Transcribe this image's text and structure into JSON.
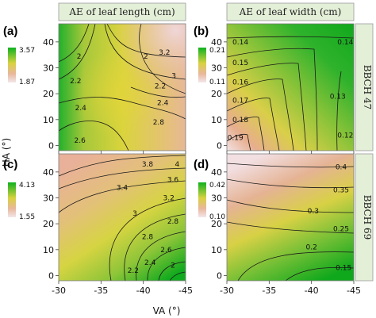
{
  "figure": {
    "column_titles": [
      "AE of leaf length (cm)",
      "AE of leaf width (cm)"
    ],
    "row_titles": [
      "BBCH 47",
      "BBCH 69"
    ],
    "panel_letters": [
      "(a)",
      "(b)",
      "(c)",
      "(d)"
    ],
    "xlabel": "VA (°)",
    "ylabel": "HA (°)"
  },
  "colors": {
    "low": "#f2e6ea",
    "mid_low": "#e9b79c",
    "mid": "#d8d240",
    "high": "#0fb21f",
    "strip": "#e4efd8"
  },
  "chart_data": [
    {
      "type": "heatmap",
      "panel": "(a)",
      "title": "AE of leaf length (cm)",
      "xlabel": "VA (°)",
      "ylabel": "HA (°)",
      "xlim": [
        -30,
        -45
      ],
      "ylim": [
        -2,
        47
      ],
      "x_ticks": [
        "-30",
        "-35",
        "-40",
        "-45"
      ],
      "y_ticks": [
        "0",
        "10",
        "20",
        "30",
        "40"
      ],
      "legend": {
        "max": "3.57",
        "min": "1.87",
        "placement": "left"
      },
      "contours": [
        {
          "label": "3.2",
          "x": -42.5,
          "y": 36
        },
        {
          "label": "3",
          "x": -43.6,
          "y": 27
        },
        {
          "label": "2.8",
          "x": -41.8,
          "y": 9
        },
        {
          "label": "2.6",
          "x": -32.5,
          "y": 2
        },
        {
          "label": "2.4",
          "x": -32.6,
          "y": 14.5
        },
        {
          "label": "2.2",
          "x": -32.0,
          "y": 25
        },
        {
          "label": "2",
          "x": -32.4,
          "y": 34.5
        },
        {
          "label": "2",
          "x": -40.3,
          "y": 34.5
        },
        {
          "label": "2.2",
          "x": -42.0,
          "y": 23
        },
        {
          "label": "2.4",
          "x": -42.3,
          "y": 16.5
        }
      ]
    },
    {
      "type": "heatmap",
      "panel": "(b)",
      "title": "AE of leaf width (cm)",
      "xlabel": "VA (°)",
      "ylabel": "HA (°)",
      "xlim": [
        -30,
        -45
      ],
      "ylim": [
        -2,
        47
      ],
      "x_ticks": [
        "-30",
        "-35",
        "-40",
        "-45"
      ],
      "y_ticks": [
        "0",
        "10",
        "20",
        "30",
        "40"
      ],
      "legend": {
        "max": "0.21",
        "min": "0.11",
        "placement": "left"
      },
      "contours": [
        {
          "label": "0.14",
          "x": -31.6,
          "y": 40
        },
        {
          "label": "0.14",
          "x": -44.0,
          "y": 40
        },
        {
          "label": "0.15",
          "x": -31.6,
          "y": 32
        },
        {
          "label": "0.16",
          "x": -31.6,
          "y": 24.5
        },
        {
          "label": "0.17",
          "x": -31.6,
          "y": 17.5
        },
        {
          "label": "0.18",
          "x": -31.6,
          "y": 10
        },
        {
          "label": "0.19",
          "x": -31.0,
          "y": 3
        },
        {
          "label": "0.13",
          "x": -43.1,
          "y": 19
        },
        {
          "label": "0.12",
          "x": -44.0,
          "y": 4
        }
      ]
    },
    {
      "type": "heatmap",
      "panel": "(c)",
      "title": "",
      "xlabel": "VA (°)",
      "ylabel": "HA (°)",
      "xlim": [
        -30,
        -45
      ],
      "ylim": [
        -2,
        47
      ],
      "x_ticks": [
        "-30",
        "-35",
        "-40",
        "-45"
      ],
      "y_ticks": [
        "0",
        "10",
        "20",
        "30",
        "40"
      ],
      "legend": {
        "max": "4.13",
        "min": "1.55",
        "placement": "left"
      },
      "contours": [
        {
          "label": "3.8",
          "x": -40.5,
          "y": 43
        },
        {
          "label": "4",
          "x": -44.0,
          "y": 43
        },
        {
          "label": "3.6",
          "x": -43.5,
          "y": 37
        },
        {
          "label": "3.4",
          "x": -37.5,
          "y": 34
        },
        {
          "label": "3.2",
          "x": -43.0,
          "y": 30
        },
        {
          "label": "3",
          "x": -39.0,
          "y": 24
        },
        {
          "label": "2.8",
          "x": -43.5,
          "y": 21
        },
        {
          "label": "2.8",
          "x": -40.5,
          "y": 15
        },
        {
          "label": "2.6",
          "x": -42.7,
          "y": 10
        },
        {
          "label": "2.4",
          "x": -40.8,
          "y": 5
        },
        {
          "label": "2.2",
          "x": -38.8,
          "y": 2
        },
        {
          "label": "2",
          "x": -43.5,
          "y": 4
        }
      ]
    },
    {
      "type": "heatmap",
      "panel": "(d)",
      "title": "",
      "xlabel": "VA (°)",
      "ylabel": "HA (°)",
      "xlim": [
        -30,
        -45
      ],
      "ylim": [
        -2,
        47
      ],
      "x_ticks": [
        "-30",
        "-35",
        "-40",
        "-45"
      ],
      "y_ticks": [
        "0",
        "10",
        "20",
        "30",
        "40"
      ],
      "legend": {
        "max": "0.42",
        "min": "0.10",
        "placement": "left"
      },
      "contours": [
        {
          "label": "0.4",
          "x": -43.5,
          "y": 42
        },
        {
          "label": "0.35",
          "x": -43.5,
          "y": 33
        },
        {
          "label": "0.3",
          "x": -40.2,
          "y": 25
        },
        {
          "label": "0.25",
          "x": -43.5,
          "y": 18
        },
        {
          "label": "0.2",
          "x": -40.0,
          "y": 11
        },
        {
          "label": "0.15",
          "x": -43.8,
          "y": 3
        }
      ]
    }
  ]
}
